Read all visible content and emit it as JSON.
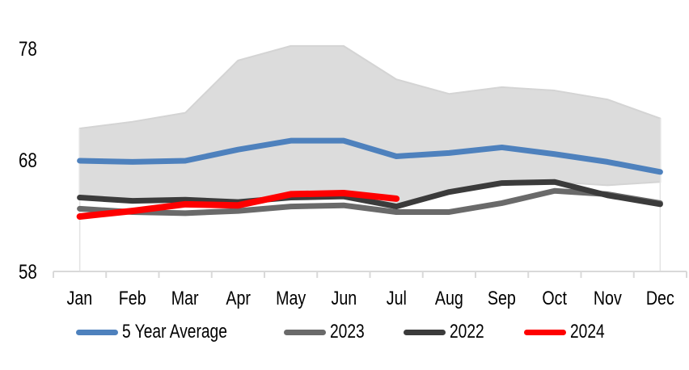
{
  "chart_data": {
    "type": "line",
    "title": "",
    "xlabel": "",
    "ylabel": "",
    "months": [
      "Jan",
      "Feb",
      "Mar",
      "Apr",
      "May",
      "Jun",
      "Jul",
      "Aug",
      "Sep",
      "Oct",
      "Nov",
      "Dec"
    ],
    "yticks": [
      78,
      68,
      58
    ],
    "ylim": [
      58,
      80
    ],
    "grid": "off",
    "legend_position": "bottom",
    "axis_color": "#d9d9d9",
    "band": {
      "name": "5-year min-max range",
      "fill_color": "#dcdcdc",
      "edge_color": "#d4d4d4",
      "max": [
        70.9,
        71.5,
        72.3,
        77.0,
        78.3,
        78.3,
        75.3,
        74.0,
        74.6,
        74.3,
        73.5,
        71.8
      ],
      "min": [
        64.6,
        64.4,
        64.5,
        64.2,
        64.6,
        64.7,
        63.8,
        65.2,
        66.0,
        66.1,
        65.8,
        66.1
      ]
    },
    "series": [
      {
        "name": "5 Year Average",
        "color": "#4e81bd",
        "width": 7,
        "values": [
          68.0,
          67.9,
          68.0,
          69.0,
          69.8,
          69.8,
          68.4,
          68.7,
          69.2,
          68.6,
          67.9,
          67.0
        ]
      },
      {
        "name": "2023",
        "color": "#6a6a6a",
        "width": 7,
        "values": [
          63.7,
          63.4,
          63.3,
          63.5,
          63.9,
          64.0,
          63.4,
          63.4,
          64.2,
          65.3,
          65.0,
          64.2
        ]
      },
      {
        "name": "2022",
        "color": "#3b3b3b",
        "width": 7,
        "values": [
          64.7,
          64.4,
          64.5,
          64.3,
          64.7,
          64.8,
          63.9,
          65.2,
          66.0,
          66.1,
          64.9,
          64.1
        ]
      },
      {
        "name": "2024",
        "color": "#fe0000",
        "width": 8,
        "values": [
          63.0,
          63.5,
          64.1,
          64.0,
          65.0,
          65.1,
          64.6
        ]
      }
    ]
  }
}
